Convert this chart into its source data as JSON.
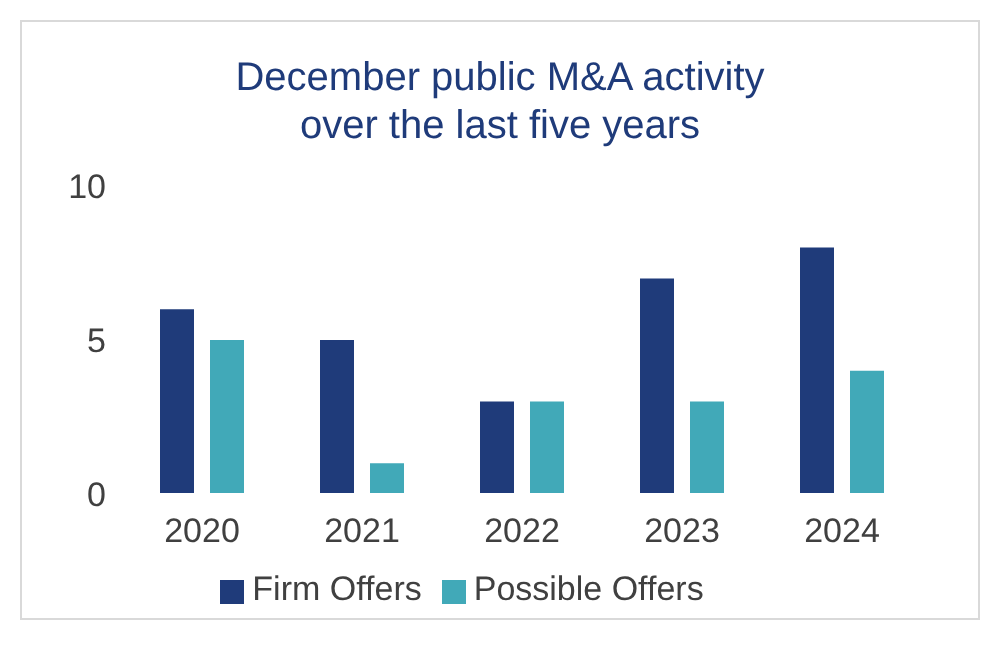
{
  "chart_data": {
    "type": "bar",
    "title": "December public M&A activity over the last five years",
    "categories": [
      "2020",
      "2021",
      "2022",
      "2023",
      "2024"
    ],
    "series": [
      {
        "name": "Firm Offers",
        "color": "#1f3b7a",
        "values": [
          6,
          5,
          3,
          7,
          8
        ]
      },
      {
        "name": "Possible Offers",
        "color": "#41a9b8",
        "values": [
          5,
          1,
          3,
          3,
          4
        ]
      }
    ],
    "ylim": [
      0,
      10
    ],
    "yticks": [
      0,
      5,
      10
    ],
    "grid": false,
    "legend": "bottom"
  }
}
